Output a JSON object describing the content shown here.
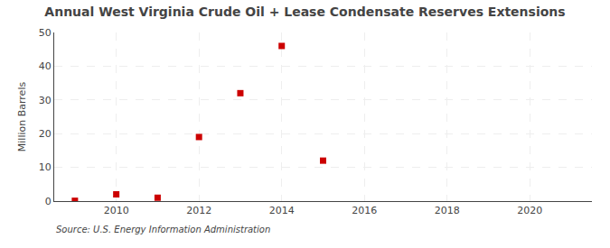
{
  "chart_data": {
    "type": "scatter",
    "title": "Annual West Virginia Crude Oil + Lease Condensate Reserves Extensions",
    "ylabel": "Million Barrels",
    "annotations": [
      "Source: U.S. Energy Information Administration"
    ],
    "x": [
      2009,
      2010,
      2011,
      2012,
      2013,
      2014,
      2015
    ],
    "values": [
      0.1,
      2.0,
      1.0,
      19.0,
      32.0,
      46.0,
      12.0
    ],
    "color": "#cc0000",
    "marker": "square",
    "xlim": [
      2008.5,
      2021.5
    ],
    "ylim": [
      0,
      50
    ],
    "xticks": [
      2010,
      2012,
      2014,
      2016,
      2018,
      2020
    ],
    "yticks": [
      0,
      10,
      20,
      30,
      40,
      50
    ],
    "grid": true
  }
}
